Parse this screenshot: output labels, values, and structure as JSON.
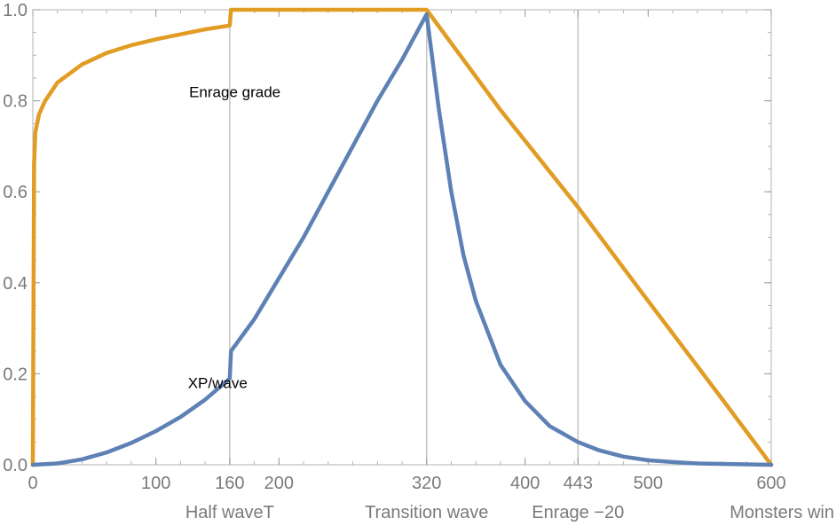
{
  "chart_data": {
    "type": "line",
    "title": "",
    "xlabel": "",
    "ylabel": "",
    "xlim": [
      0,
      600
    ],
    "ylim": [
      0,
      1
    ],
    "x_ticks": [
      0,
      100,
      160,
      200,
      320,
      400,
      443,
      500,
      600
    ],
    "y_ticks": [
      0.0,
      0.2,
      0.4,
      0.6,
      0.8,
      1.0
    ],
    "y_tick_labels": [
      "0.0",
      "0.2",
      "0.4",
      "0.6",
      "0.8",
      "1.0"
    ],
    "grid": false,
    "vertical_markers": [
      {
        "x": 160,
        "label": "Half waveT"
      },
      {
        "x": 320,
        "label": "Transition wave"
      },
      {
        "x": 443,
        "label": "Enrage −20"
      },
      {
        "x": 600,
        "label": "Monsters win"
      }
    ],
    "series": [
      {
        "name": "Enrage grade",
        "color": "#e19c24",
        "x": [
          0,
          1,
          2,
          5,
          10,
          20,
          40,
          60,
          80,
          100,
          120,
          140,
          159,
          160,
          161,
          200,
          250,
          300,
          320,
          380,
          443,
          500,
          560,
          600
        ],
        "y": [
          0,
          0.66,
          0.73,
          0.77,
          0.8,
          0.84,
          0.88,
          0.905,
          0.922,
          0.935,
          0.946,
          0.957,
          0.965,
          0.966,
          1.0,
          1.0,
          1.0,
          1.0,
          1.0,
          0.78,
          0.566,
          0.36,
          0.145,
          0.0
        ]
      },
      {
        "name": "XP/wave",
        "color": "#5e81b5",
        "x": [
          0,
          20,
          40,
          60,
          80,
          100,
          120,
          140,
          159,
          160,
          161,
          180,
          200,
          220,
          240,
          260,
          280,
          300,
          320,
          330,
          340,
          350,
          360,
          380,
          400,
          420,
          443,
          460,
          480,
          500,
          520,
          540,
          560,
          580,
          600
        ],
        "y": [
          0,
          0.003,
          0.012,
          0.027,
          0.048,
          0.074,
          0.105,
          0.143,
          0.187,
          0.19,
          0.25,
          0.32,
          0.41,
          0.5,
          0.6,
          0.7,
          0.8,
          0.89,
          0.99,
          0.78,
          0.6,
          0.46,
          0.36,
          0.22,
          0.14,
          0.085,
          0.05,
          0.032,
          0.018,
          0.01,
          0.006,
          0.003,
          0.002,
          0.001,
          0.0
        ]
      }
    ],
    "annotations": [
      {
        "text": "Enrage grade",
        "series": "Enrage grade",
        "x": 127,
        "y": 0.82
      },
      {
        "text": "XP/wave",
        "series": "XP/wave",
        "x": 126,
        "y": 0.18
      }
    ]
  }
}
